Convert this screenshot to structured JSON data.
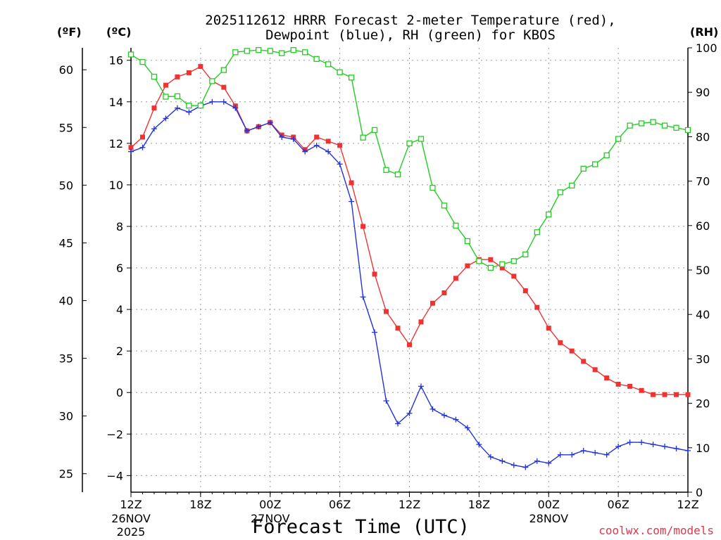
{
  "title_line1": "2025112612 HRRR Forecast 2-meter Temperature (red),",
  "title_line2": "Dewpoint (blue), RH (green) for KBOS",
  "units": {
    "fahrenheit": "(ºF)",
    "celsius": "(ºC)",
    "rh": "(RH)"
  },
  "xlabel": "Forecast Time (UTC)",
  "credit": "coolwx.com/models",
  "chart_data": {
    "type": "line",
    "x_hours": [
      0,
      1,
      2,
      3,
      4,
      5,
      6,
      7,
      8,
      9,
      10,
      11,
      12,
      13,
      14,
      15,
      16,
      17,
      18,
      19,
      20,
      21,
      22,
      23,
      24,
      25,
      26,
      27,
      28,
      29,
      30,
      31,
      32,
      33,
      34,
      35,
      36,
      37,
      38,
      39,
      40,
      41,
      42,
      43,
      44,
      45,
      46,
      47,
      48
    ],
    "x_ticks": [
      {
        "hour": 0,
        "label": "12Z",
        "sub1": "26NOV",
        "sub2": "2025"
      },
      {
        "hour": 6,
        "label": "18Z",
        "sub1": "",
        "sub2": ""
      },
      {
        "hour": 12,
        "label": "00Z",
        "sub1": "27NOV",
        "sub2": ""
      },
      {
        "hour": 18,
        "label": "06Z",
        "sub1": "",
        "sub2": ""
      },
      {
        "hour": 24,
        "label": "12Z",
        "sub1": "",
        "sub2": ""
      },
      {
        "hour": 30,
        "label": "18Z",
        "sub1": "",
        "sub2": ""
      },
      {
        "hour": 36,
        "label": "00Z",
        "sub1": "28NOV",
        "sub2": ""
      },
      {
        "hour": 42,
        "label": "06Z",
        "sub1": "",
        "sub2": ""
      },
      {
        "hour": 48,
        "label": "12Z",
        "sub1": "",
        "sub2": ""
      }
    ],
    "celsius_axis": {
      "range": [
        -4.8,
        16.6
      ],
      "ticks": [
        16,
        14,
        12,
        10,
        8,
        6,
        4,
        2,
        0,
        -2,
        -4
      ]
    },
    "fahrenheit_axis": {
      "range": [
        23.4,
        61.9
      ],
      "ticks": [
        60,
        55,
        50,
        45,
        40,
        35,
        30,
        25
      ]
    },
    "rh_axis": {
      "range": [
        0,
        100
      ],
      "ticks": [
        100,
        90,
        80,
        70,
        60,
        50,
        40,
        30,
        20,
        10,
        0
      ]
    },
    "series": [
      {
        "name": "Temperature",
        "unit": "C",
        "color": "#ee3333",
        "marker": "filled-square",
        "values": [
          11.8,
          12.3,
          13.7,
          14.8,
          15.2,
          15.4,
          15.7,
          15.0,
          14.7,
          13.8,
          12.6,
          12.8,
          13.0,
          12.4,
          12.3,
          11.7,
          12.3,
          12.1,
          11.9,
          10.1,
          8.0,
          5.7,
          3.9,
          3.1,
          2.3,
          3.4,
          4.3,
          4.8,
          5.5,
          6.1,
          6.4,
          6.4,
          6.0,
          5.6,
          4.9,
          4.1,
          3.1,
          2.4,
          2.0,
          1.5,
          1.1,
          0.7,
          0.4,
          0.3,
          0.1,
          -0.1,
          -0.1,
          -0.1,
          -0.1
        ]
      },
      {
        "name": "Dewpoint",
        "unit": "C",
        "color": "#2233dd",
        "marker": "plus",
        "values": [
          11.6,
          11.8,
          12.7,
          13.2,
          13.7,
          13.5,
          13.8,
          14.0,
          14.0,
          13.7,
          12.6,
          12.8,
          13.0,
          12.3,
          12.2,
          11.6,
          11.9,
          11.6,
          11.0,
          9.2,
          4.6,
          2.9,
          -0.4,
          -1.5,
          -1.0,
          0.3,
          -0.8,
          -1.1,
          -1.3,
          -1.7,
          -2.5,
          -3.1,
          -3.3,
          -3.5,
          -3.6,
          -3.3,
          -3.4,
          -3.0,
          -3.0,
          -2.8,
          -2.9,
          -3.0,
          -2.6,
          -2.4,
          -2.4,
          -2.5,
          -2.6,
          -2.7,
          -2.8
        ]
      },
      {
        "name": "RH",
        "unit": "%",
        "color": "#22cc22",
        "marker": "open-square",
        "values": [
          98.5,
          96.8,
          93.5,
          89.0,
          89.1,
          87.0,
          87.0,
          92.5,
          95.0,
          99.0,
          99.3,
          99.5,
          99.3,
          98.8,
          99.5,
          99.0,
          97.5,
          96.3,
          94.5,
          93.3,
          79.8,
          81.5,
          72.5,
          71.5,
          78.5,
          79.5,
          68.5,
          64.5,
          60.0,
          56.5,
          52.0,
          50.5,
          51.3,
          52.0,
          53.5,
          58.5,
          62.5,
          67.5,
          69.0,
          72.8,
          73.8,
          75.8,
          79.5,
          82.5,
          83.0,
          83.3,
          82.5,
          82.0,
          81.5
        ]
      }
    ]
  }
}
